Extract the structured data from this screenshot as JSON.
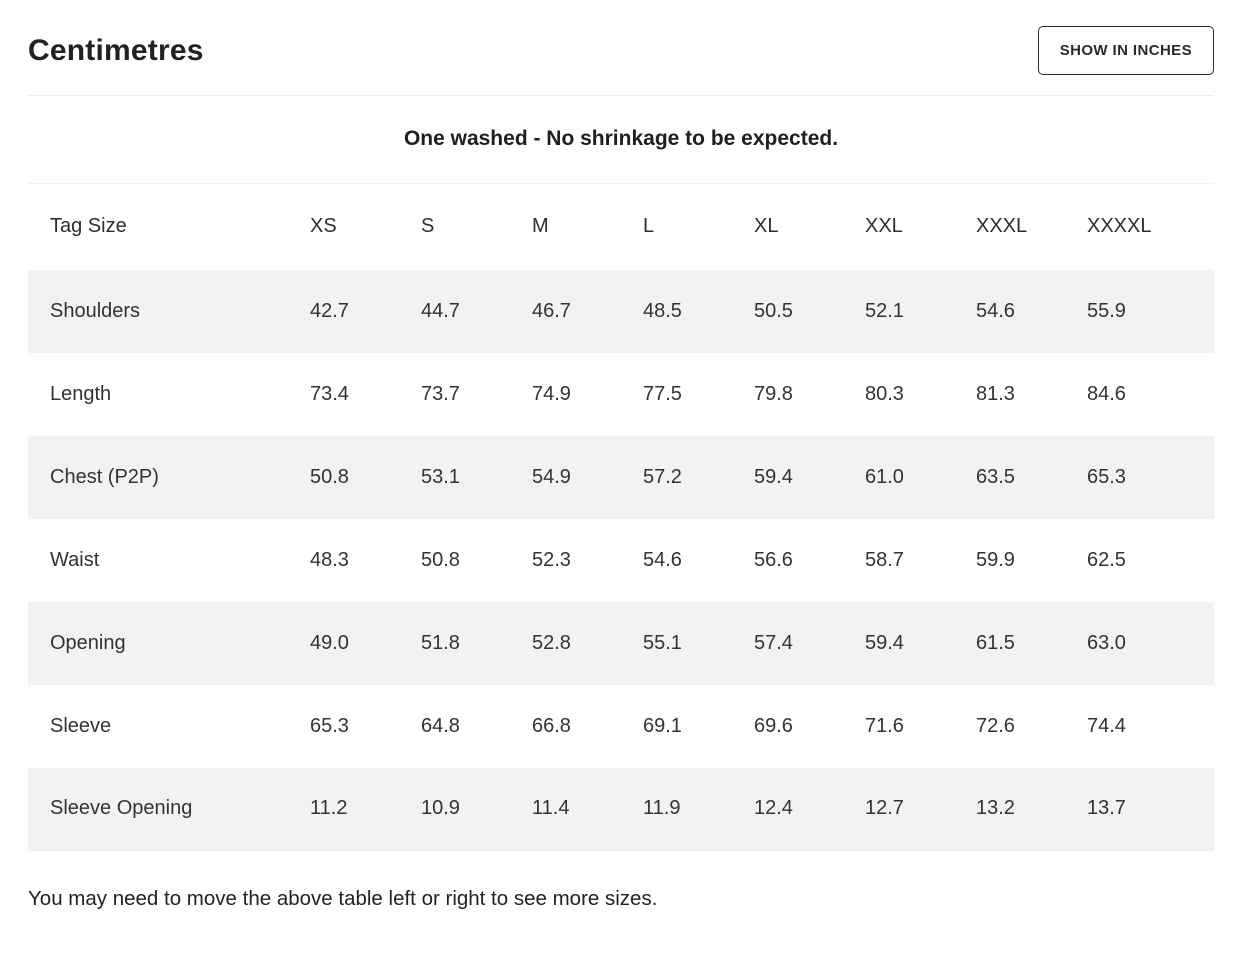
{
  "page": {
    "title": "Centimetres",
    "toggle_button_label": "SHOW IN INCHES",
    "note": "One washed - No shrinkage to be expected.",
    "footer_hint": "You may need to move the above table left or right to see more sizes."
  },
  "table": {
    "header": [
      "Tag Size",
      "XS",
      "S",
      "M",
      "L",
      "XL",
      "XXL",
      "XXXL",
      "XXXXL"
    ],
    "rows": [
      {
        "label": "Shoulders",
        "values": [
          "42.7",
          "44.7",
          "46.7",
          "48.5",
          "50.5",
          "52.1",
          "54.6",
          "55.9"
        ]
      },
      {
        "label": "Length",
        "values": [
          "73.4",
          "73.7",
          "74.9",
          "77.5",
          "79.8",
          "80.3",
          "81.3",
          "84.6"
        ]
      },
      {
        "label": "Chest (P2P)",
        "values": [
          "50.8",
          "53.1",
          "54.9",
          "57.2",
          "59.4",
          "61.0",
          "63.5",
          "65.3"
        ]
      },
      {
        "label": "Waist",
        "values": [
          "48.3",
          "50.8",
          "52.3",
          "54.6",
          "56.6",
          "58.7",
          "59.9",
          "62.5"
        ]
      },
      {
        "label": "Opening",
        "values": [
          "49.0",
          "51.8",
          "52.8",
          "55.1",
          "57.4",
          "59.4",
          "61.5",
          "63.0"
        ]
      },
      {
        "label": "Sleeve",
        "values": [
          "65.3",
          "64.8",
          "66.8",
          "69.1",
          "69.6",
          "71.6",
          "72.6",
          "74.4"
        ]
      },
      {
        "label": "Sleeve Opening",
        "values": [
          "11.2",
          "10.9",
          "11.4",
          "11.9",
          "12.4",
          "12.7",
          "13.2",
          "13.7"
        ]
      }
    ]
  },
  "colors": {
    "row_stripe": "#f2f2f2",
    "text": "#333333",
    "divider": "#ececec",
    "button_border": "#2b2b2b"
  }
}
